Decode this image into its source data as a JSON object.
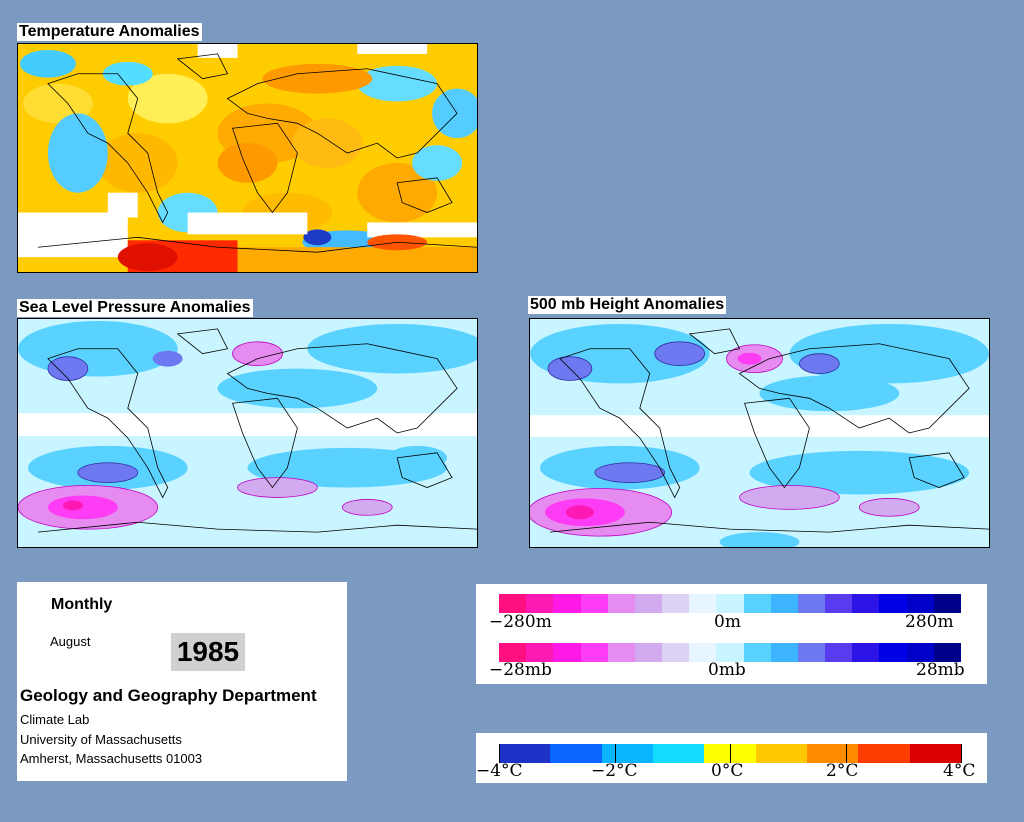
{
  "panels": {
    "temperature": {
      "title": "Temperature Anomalies"
    },
    "slp": {
      "title": "Sea Level Pressure Anomalies"
    },
    "height500": {
      "title": "500 mb Height Anomalies"
    }
  },
  "info": {
    "product": "Monthly",
    "month": "August",
    "year": "1985",
    "department": "Geology and Geography Department",
    "lab": "Climate Lab",
    "university": "University of Massachusetts",
    "address": "Amherst, Massachusetts 01003"
  },
  "legends": {
    "height": {
      "min": "−280m",
      "mid": "0m",
      "max": "280m"
    },
    "pressure": {
      "min": "−28mb",
      "mid": "0mb",
      "max": "28mb"
    },
    "temperature": {
      "labels": [
        "−4°C",
        "−2°C",
        "0°C",
        "2°C",
        "4°C"
      ]
    }
  },
  "colors": {
    "background": "#7b9ac2",
    "anomaly_scale": [
      "#ff0f7f",
      "#ff19b4",
      "#ff19e6",
      "#ff3cf5",
      "#e68cf0",
      "#d2aaf0",
      "#dcd2f5",
      "#e6f5ff",
      "#c8f5ff",
      "#5ad2ff",
      "#3cb4ff",
      "#6e78f0",
      "#5a3cf0",
      "#2d14e6",
      "#0000e6",
      "#0000c8",
      "#00008c"
    ],
    "temperature_scale": [
      "#1e32c8",
      "#0a64ff",
      "#0ab4ff",
      "#14dcff",
      "#ffff00",
      "#ffc800",
      "#ff8c00",
      "#ff3c00",
      "#dc0000"
    ]
  }
}
